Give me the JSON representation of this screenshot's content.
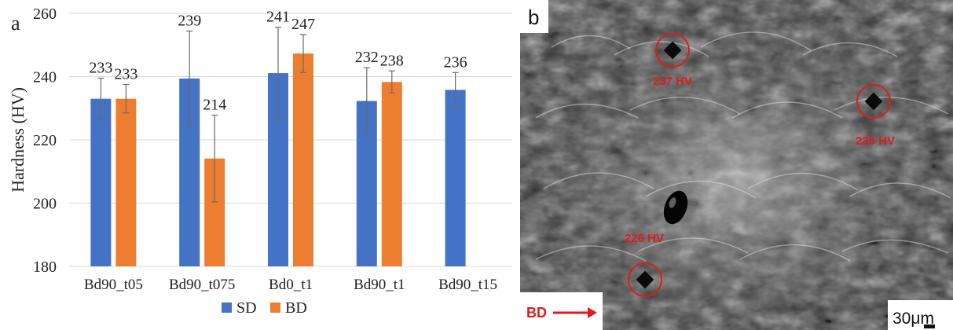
{
  "panel_a": {
    "label": "a"
  },
  "panel_b": {
    "label": "b",
    "indents": [
      {
        "label": "237 HV"
      },
      {
        "label": "235 HV"
      },
      {
        "label": "226 HV"
      }
    ],
    "bd_label": "BD",
    "scale_label": "30μm"
  },
  "chart_data": {
    "type": "bar",
    "categories": [
      "Bd90_t05",
      "Bd90_t075",
      "Bd0_t1",
      "Bd90_t1",
      "Bd90_t15"
    ],
    "series": [
      {
        "name": "SD",
        "color": "#4472C4",
        "values": [
          233,
          239.4,
          241.1,
          232.3,
          235.8
        ],
        "labels": [
          "233",
          "239",
          "241",
          "232",
          "236"
        ],
        "error": [
          6.5,
          15,
          14.5,
          10.5,
          5.5
        ]
      },
      {
        "name": "BD",
        "color": "#ED7D31",
        "values": [
          233,
          214.1,
          247.3,
          238.3,
          null
        ],
        "labels": [
          "233",
          "214",
          "247",
          "238",
          ""
        ],
        "error": [
          4.5,
          13.7,
          6,
          3.5,
          null
        ]
      }
    ],
    "ylabel": "Hardness (HV)",
    "xlabel": "",
    "ylim": [
      180,
      260
    ],
    "yticks": [
      180,
      200,
      220,
      240,
      260
    ],
    "grid": true,
    "legend": "bottom"
  }
}
